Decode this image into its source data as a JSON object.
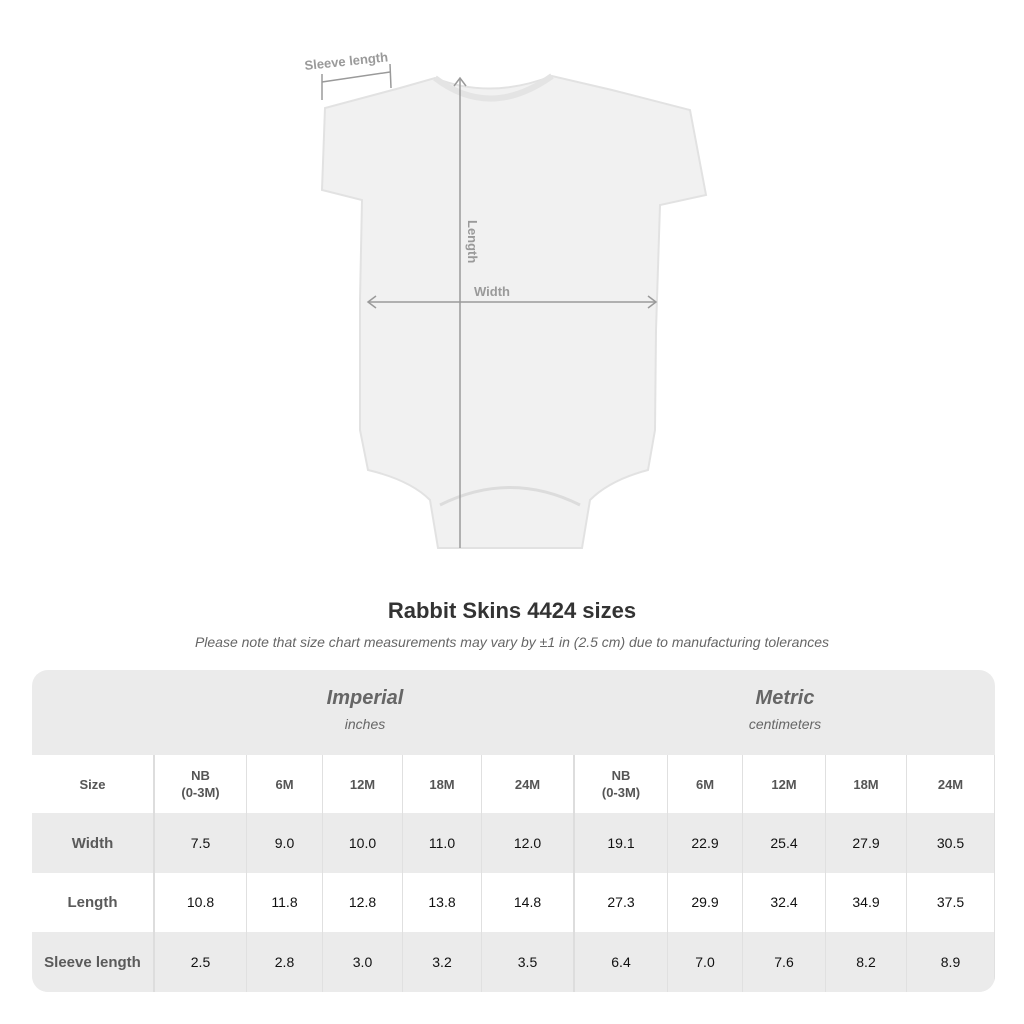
{
  "diagram": {
    "sleeve_label": "Sleeve length",
    "length_label": "Length",
    "width_label": "Width"
  },
  "title": "Rabbit Skins 4424 sizes",
  "note": "Please note that size chart measurements may vary by ±1 in (2.5 cm) due to manufacturing tolerances",
  "table": {
    "imperial": {
      "title": "Imperial",
      "unit": "inches"
    },
    "metric": {
      "title": "Metric",
      "unit": "centimeters"
    },
    "size_label": "Size",
    "sizes": [
      [
        "NB",
        "(0-3M)"
      ],
      [
        "6M",
        ""
      ],
      [
        "12M",
        ""
      ],
      [
        "18M",
        ""
      ],
      [
        "24M",
        ""
      ]
    ],
    "rows": [
      {
        "label": "Width",
        "imperial": [
          "7.5",
          "9.0",
          "10.0",
          "11.0",
          "12.0"
        ],
        "metric": [
          "19.1",
          "22.9",
          "25.4",
          "27.9",
          "30.5"
        ]
      },
      {
        "label": "Length",
        "imperial": [
          "10.8",
          "11.8",
          "12.8",
          "13.8",
          "14.8"
        ],
        "metric": [
          "27.3",
          "29.9",
          "32.4",
          "34.9",
          "37.5"
        ]
      },
      {
        "label": "Sleeve length",
        "imperial": [
          "2.5",
          "2.8",
          "3.0",
          "3.2",
          "3.5"
        ],
        "metric": [
          "6.4",
          "7.0",
          "7.6",
          "8.2",
          "8.9"
        ]
      }
    ]
  },
  "colors": {
    "band": "#ebebeb",
    "garment": "#f0f0f0",
    "measure_line": "#9a9a9a"
  }
}
